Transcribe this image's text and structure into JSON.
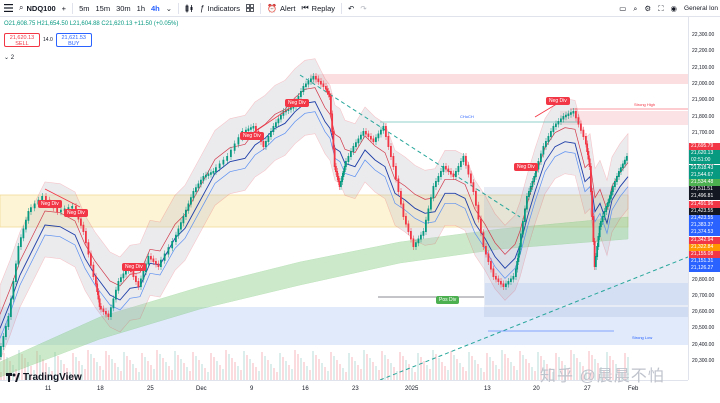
{
  "toolbar": {
    "symbol": "NDQ100",
    "intervals": [
      "5m",
      "15m",
      "30m",
      "1h",
      "4h"
    ],
    "indicators_label": "Indicators",
    "alert_label": "Alert",
    "replay_label": "Replay",
    "right_label": "General Ion"
  },
  "legend": {
    "ohlc": "O21,608.75  H21,654.50  L21,604.88  C21,620.13  +11.50 (+0.05%)"
  },
  "trade": {
    "sell_price": "21,620.13",
    "sell_label": "SELL",
    "spread": "14.0",
    "buy_price": "21,621.53",
    "buy_label": "BUY",
    "indicators_count": "2"
  },
  "price_ticks": [
    "22,300.00",
    "22,200.00",
    "22,100.00",
    "22,000.00",
    "21,900.00",
    "21,800.00",
    "21,700.00",
    "21,600.00",
    "21,500.00",
    "21,400.00",
    "21,300.00",
    "21,200.00",
    "21,100.00",
    "21,000.00",
    "20,900.00",
    "20,800.00",
    "20,700.00",
    "20,600.00",
    "20,500.00",
    "20,400.00",
    "20,300.00"
  ],
  "price_tags": [
    {
      "text": "21,695.79",
      "color": "#f23645"
    },
    {
      "text": "21,620.13",
      "color": "#089981"
    },
    {
      "text": "02:51:00",
      "color": "#089981"
    },
    {
      "text": "21,618.43",
      "color": "#089981"
    },
    {
      "text": "21,544.67",
      "color": "#089981"
    },
    {
      "text": "21,534.48",
      "color": "#4caf50"
    },
    {
      "text": "21,511.51",
      "color": "#131722"
    },
    {
      "text": "21,496.81",
      "color": "#131722"
    },
    {
      "text": "21,491.96",
      "color": "#f23645"
    },
    {
      "text": "21,423.55",
      "color": "#131722"
    },
    {
      "text": "21,423.55",
      "color": "#2962ff"
    },
    {
      "text": "21,383.37",
      "color": "#2962ff"
    },
    {
      "text": "21,374.53",
      "color": "#2962ff"
    },
    {
      "text": "21,342.94",
      "color": "#f23645"
    },
    {
      "text": "21,322.84",
      "color": "#ff9800"
    },
    {
      "text": "21,155.08",
      "color": "#f23645"
    },
    {
      "text": "21,151.31",
      "color": "#2962ff"
    },
    {
      "text": "21,126.27",
      "color": "#2962ff"
    }
  ],
  "time_ticks": [
    "11",
    "18",
    "25",
    "Dec",
    "9",
    "16",
    "23",
    "2025",
    "13",
    "20",
    "27",
    "Feb"
  ],
  "labels": {
    "neg_div": "Neg Div",
    "pos_div": "Pos Div",
    "choch": "CHoCH",
    "strong_high": "Strong High",
    "weak_low": "Strong Low"
  },
  "branding": {
    "logo_text": "TradingView",
    "watermark": "知乎 @晨晨不怕"
  }
}
